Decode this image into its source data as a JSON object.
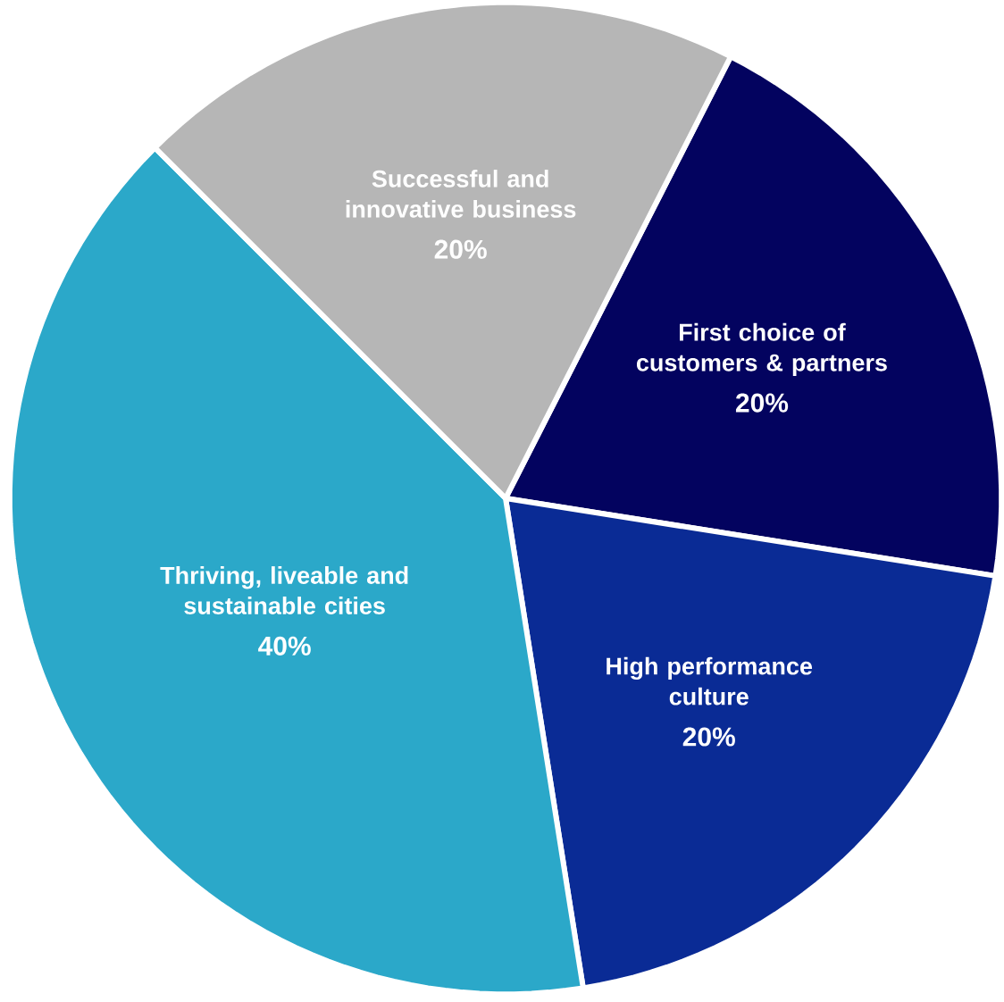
{
  "chart_data": {
    "type": "pie",
    "categories": [
      "First choice of customers & partners",
      "High performance culture",
      "Thriving, liveable and sustainable cities",
      "Successful and innovative business"
    ],
    "values": [
      20,
      20,
      40,
      20
    ],
    "colors": [
      "#03035f",
      "#0a2b95",
      "#2ba8c9",
      "#b6b6b6"
    ],
    "value_labels": [
      "20%",
      "20%",
      "40%",
      "20%"
    ]
  }
}
